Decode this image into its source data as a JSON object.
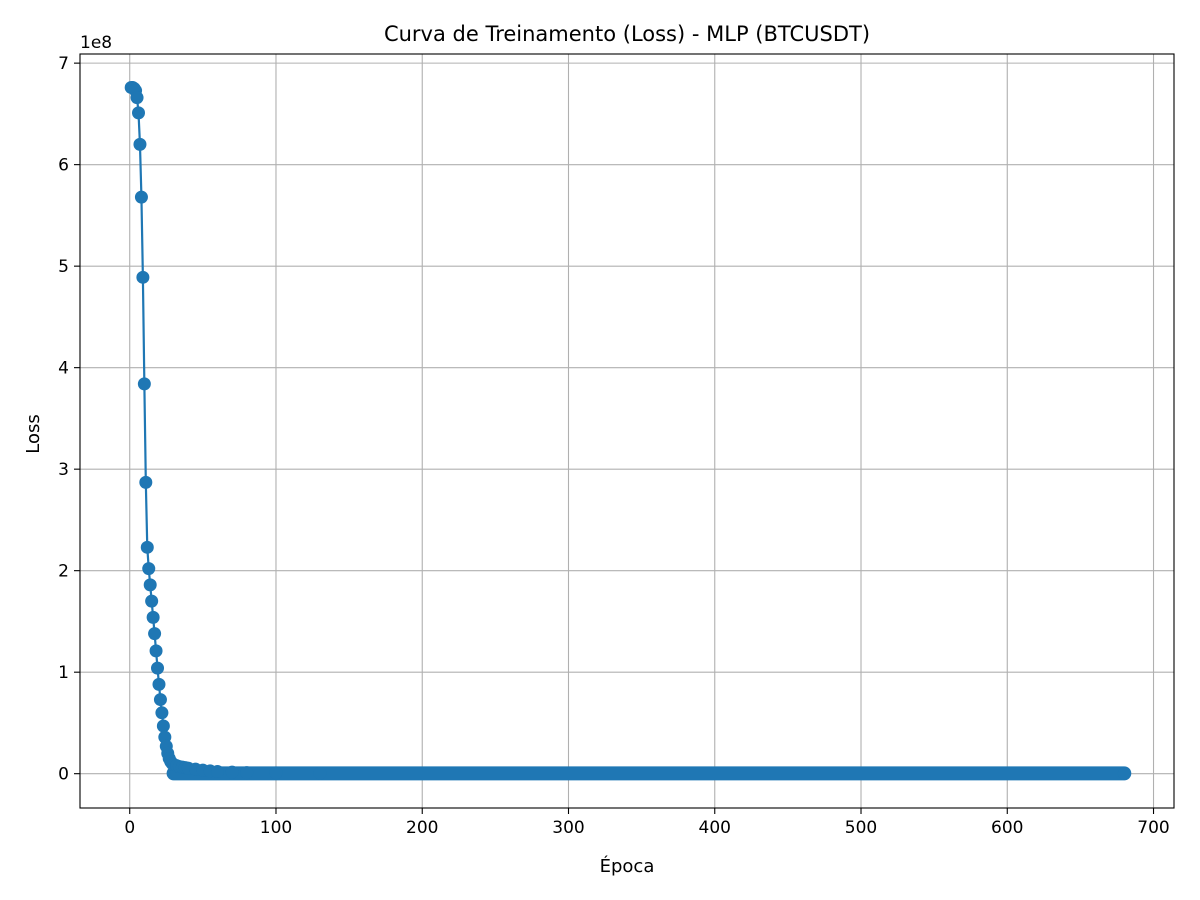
{
  "chart_data": {
    "type": "line",
    "title": "Curva de Treinamento (Loss) - MLP (BTCUSDT)",
    "xlabel": "Época",
    "ylabel": "Loss",
    "y_offset_label": "1e8",
    "xlim": [
      -34,
      714
    ],
    "ylim": [
      -0.338,
      7.09
    ],
    "xticks": [
      0,
      100,
      200,
      300,
      400,
      500,
      600,
      700
    ],
    "yticks": [
      0,
      1,
      2,
      3,
      4,
      5,
      6,
      7
    ],
    "grid": true,
    "legend": "none",
    "marker": "circle",
    "color": "#1f77b4",
    "y_scale_note": "values in units of 1e8",
    "x": [
      1,
      2,
      3,
      4,
      5,
      6,
      7,
      8,
      9,
      10,
      11,
      12,
      13,
      14,
      15,
      16,
      17,
      18,
      19,
      20,
      21,
      22,
      23,
      24,
      25,
      26,
      27,
      28,
      29,
      30,
      32,
      34,
      36,
      38,
      40,
      45,
      50,
      55,
      60,
      70,
      80,
      100,
      130,
      680
    ],
    "y": [
      6.76,
      6.76,
      6.75,
      6.73,
      6.66,
      6.51,
      6.2,
      5.68,
      4.89,
      3.84,
      2.87,
      2.23,
      2.02,
      1.86,
      1.7,
      1.54,
      1.38,
      1.21,
      1.04,
      0.88,
      0.73,
      0.6,
      0.47,
      0.36,
      0.27,
      0.2,
      0.15,
      0.12,
      0.1,
      0.09,
      0.08,
      0.07,
      0.065,
      0.06,
      0.055,
      0.045,
      0.035,
      0.028,
      0.022,
      0.015,
      0.01,
      0.008,
      0.005,
      0.001
    ]
  }
}
